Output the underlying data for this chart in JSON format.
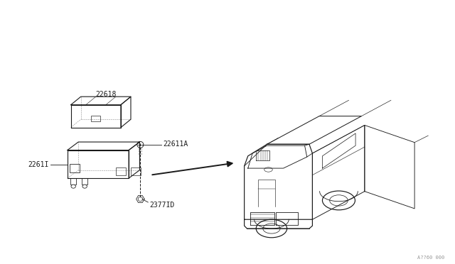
{
  "bg_color": "#ffffff",
  "line_color": "#1a1a1a",
  "fig_width": 6.4,
  "fig_height": 3.72,
  "dpi": 100,
  "watermark": "A??60 000",
  "label_22618": "22618",
  "label_22611": "2261I",
  "label_22611A": "22611A",
  "label_23771D": "2377ID"
}
